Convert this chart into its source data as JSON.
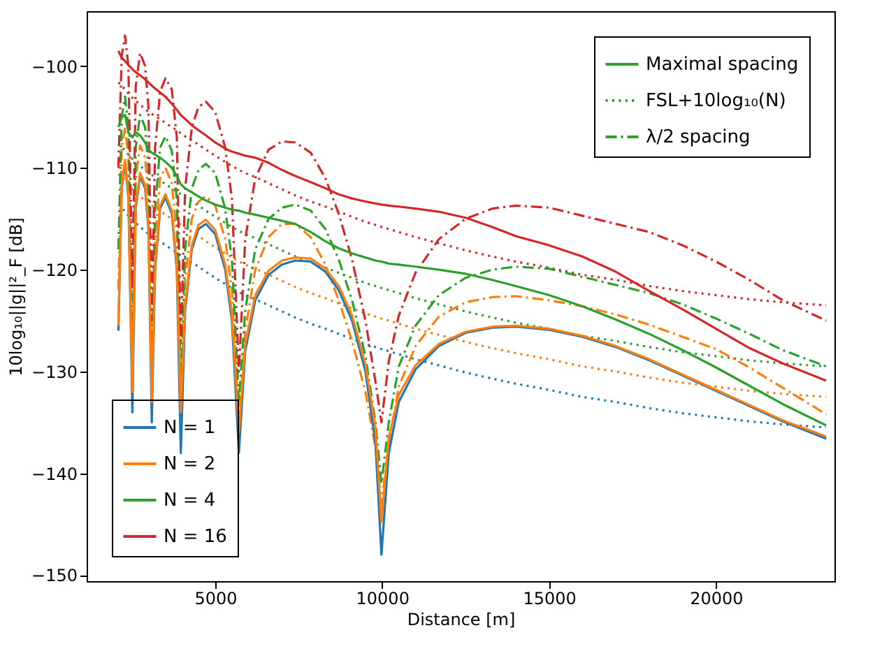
{
  "chart_data": {
    "type": "line",
    "xlabel": "Distance [m]",
    "ylabel": "10log₁₀||g||²_F [dB]",
    "xlim": [
      1150,
      23550
    ],
    "ylim": [
      -150.6,
      -94.6
    ],
    "xticks": [
      5000,
      10000,
      15000,
      20000
    ],
    "yticks": [
      -150,
      -140,
      -130,
      -120,
      -110,
      -100
    ],
    "grid": false,
    "legend": "bottom left",
    "marker": "none",
    "annotations": [
      "Maximal spacing"
    ],
    "x": [
      2100,
      2200,
      2300,
      2400,
      2520,
      2620,
      2750,
      2900,
      3000,
      3100,
      3200,
      3350,
      3510,
      3700,
      3850,
      3970,
      4100,
      4300,
      4500,
      4720,
      5000,
      5300,
      5500,
      5710,
      5900,
      6200,
      6600,
      7000,
      7400,
      7860,
      8300,
      8700,
      9100,
      9500,
      9800,
      9980,
      10200,
      10500,
      11000,
      11700,
      12500,
      13300,
      14000,
      15000,
      16000,
      17000,
      18000,
      19000,
      20000,
      21000,
      22000,
      23300
    ],
    "series": [
      {
        "color": "#1f77b4",
        "line_style": "dotted",
        "values": [
          -113.6,
          -113.9,
          -114.3,
          -114.7,
          -115.1,
          -115.4,
          -115.8,
          -116.2,
          -116.5,
          -116.7,
          -116.9,
          -117.2,
          -117.6,
          -118,
          -118.3,
          -118.6,
          -118.9,
          -119.3,
          -119.7,
          -120.2,
          -120.8,
          -121.4,
          -121.8,
          -122.2,
          -122.5,
          -122.9,
          -123.5,
          -124.1,
          -124.7,
          -125.3,
          -125.8,
          -126.3,
          -126.8,
          -127.3,
          -127.6,
          -127.8,
          -128,
          -128.3,
          -128.8,
          -129.4,
          -130.1,
          -130.7,
          -131.2,
          -131.8,
          -132.5,
          -133,
          -133.6,
          -134.1,
          -134.5,
          -134.9,
          -135.2,
          -135.5
        ]
      },
      {
        "color": "#ff7f0e",
        "line_style": "dotted",
        "values": [
          -110.6,
          -110.9,
          -111.3,
          -111.7,
          -112.1,
          -112.4,
          -112.8,
          -113.2,
          -113.5,
          -113.7,
          -113.9,
          -114.2,
          -114.6,
          -115,
          -115.3,
          -115.6,
          -115.9,
          -116.3,
          -116.7,
          -117.2,
          -117.8,
          -118.4,
          -118.8,
          -119.2,
          -119.5,
          -119.9,
          -120.5,
          -121.1,
          -121.7,
          -122.3,
          -122.8,
          -123.3,
          -123.8,
          -124.3,
          -124.6,
          -124.8,
          -125,
          -125.3,
          -125.8,
          -126.4,
          -127.1,
          -127.7,
          -128.2,
          -128.8,
          -129.5,
          -130,
          -130.6,
          -131.1,
          -131.5,
          -131.9,
          -132.2,
          -132.5
        ]
      },
      {
        "name": "FSL+10log₁₀(N)",
        "color": "#2ca02c",
        "line_style": "dotted",
        "values": [
          -107.6,
          -107.9,
          -108.3,
          -108.7,
          -109.1,
          -109.4,
          -109.8,
          -110.2,
          -110.5,
          -110.7,
          -110.9,
          -111.2,
          -111.6,
          -112,
          -112.3,
          -112.6,
          -112.9,
          -113.3,
          -113.7,
          -114.2,
          -114.8,
          -115.4,
          -115.8,
          -116.2,
          -116.5,
          -116.9,
          -117.5,
          -118.1,
          -118.7,
          -119.3,
          -119.8,
          -120.3,
          -120.8,
          -121.3,
          -121.6,
          -121.8,
          -122,
          -122.3,
          -122.8,
          -123.4,
          -124.1,
          -124.7,
          -125.2,
          -125.8,
          -126.5,
          -127,
          -127.6,
          -128.1,
          -128.5,
          -128.9,
          -129.2,
          -129.5
        ]
      },
      {
        "color": "#d62728",
        "line_style": "dotted",
        "values": [
          -101.6,
          -101.9,
          -102.3,
          -102.7,
          -103.1,
          -103.4,
          -103.8,
          -104.2,
          -104.5,
          -104.7,
          -104.9,
          -105.2,
          -105.6,
          -106,
          -106.3,
          -106.6,
          -106.9,
          -107.3,
          -107.7,
          -108.2,
          -108.8,
          -109.4,
          -109.8,
          -110.2,
          -110.5,
          -110.9,
          -111.5,
          -112.1,
          -112.7,
          -113.3,
          -113.8,
          -114.3,
          -114.8,
          -115.3,
          -115.6,
          -115.8,
          -116,
          -116.3,
          -116.8,
          -117.4,
          -118.1,
          -118.7,
          -119.2,
          -119.8,
          -120.5,
          -121,
          -121.6,
          -122.1,
          -122.5,
          -122.9,
          -123.2,
          -123.5
        ]
      },
      {
        "color": "#ff7f0e",
        "line_style": "dashdot",
        "values": [
          -122,
          -108,
          -106,
          -109,
          -131,
          -111,
          -107.8,
          -109,
          -113,
          -133,
          -117,
          -111,
          -110,
          -111.5,
          -116.5,
          -134,
          -121,
          -115,
          -113.3,
          -112.8,
          -113.7,
          -117,
          -122,
          -135,
          -126,
          -120,
          -116.8,
          -115.5,
          -115.5,
          -116.8,
          -119.5,
          -123,
          -127,
          -132,
          -137.5,
          -143,
          -137,
          -131.5,
          -127.5,
          -124.6,
          -123.2,
          -122.7,
          -122.6,
          -123,
          -123.6,
          -124.4,
          -125.4,
          -126.6,
          -127.8,
          -129.6,
          -131.6,
          -134.2
        ]
      },
      {
        "name": "λ/2 spacing",
        "color": "#2ca02c",
        "line_style": "dashdot",
        "values": [
          -118,
          -105,
          -103,
          -106,
          -128,
          -108,
          -104.8,
          -106,
          -110,
          -130,
          -114,
          -108,
          -106.9,
          -108.3,
          -113,
          -131,
          -118,
          -112,
          -110.2,
          -109.6,
          -110.5,
          -114,
          -119,
          -133,
          -124,
          -118,
          -115,
          -113.9,
          -113.6,
          -114.2,
          -116,
          -119,
          -123,
          -128.5,
          -135,
          -141,
          -135,
          -129.5,
          -125.5,
          -122.5,
          -120.8,
          -120,
          -119.7,
          -119.9,
          -120.7,
          -121.5,
          -122.3,
          -123.4,
          -124.8,
          -126.3,
          -127.9,
          -129.5
        ]
      },
      {
        "color": "#d62728",
        "line_style": "dashdot",
        "values": [
          -110,
          -99,
          -97,
          -100,
          -122,
          -102,
          -98.7,
          -100,
          -104,
          -125,
          -108,
          -102.5,
          -101.2,
          -102.3,
          -107,
          -127,
          -112,
          -106,
          -104,
          -103.5,
          -104.5,
          -108,
          -113,
          -130,
          -117,
          -111,
          -108.2,
          -107.4,
          -107.5,
          -108.5,
          -111,
          -114.5,
          -119,
          -125,
          -131,
          -135,
          -129,
          -124.5,
          -120.3,
          -117,
          -115,
          -114,
          -113.7,
          -113.9,
          -114.7,
          -115.5,
          -116.3,
          -117.6,
          -119.2,
          -121,
          -123,
          -125
        ]
      },
      {
        "name": "N = 1",
        "color": "#1f77b4",
        "line_style": "solid",
        "values": [
          -126,
          -112,
          -109.5,
          -113,
          -134,
          -114,
          -110.8,
          -112,
          -116,
          -135,
          -120,
          -114,
          -112.9,
          -114.5,
          -120,
          -138,
          -124,
          -118,
          -116,
          -115.5,
          -116.5,
          -120,
          -125,
          -138,
          -128,
          -123,
          -120.5,
          -119.5,
          -119.1,
          -119.2,
          -120.2,
          -122,
          -125,
          -130,
          -137,
          -148,
          -138,
          -133,
          -129.8,
          -127.5,
          -126.2,
          -125.7,
          -125.6,
          -125.9,
          -126.6,
          -127.6,
          -128.9,
          -130.4,
          -131.9,
          -133.4,
          -134.9,
          -136.6
        ]
      },
      {
        "name": "N = 2",
        "color": "#ff7f0e",
        "line_style": "solid",
        "values": [
          -125.5,
          -111.7,
          -109.2,
          -112.7,
          -132,
          -113.7,
          -110.5,
          -111.7,
          -115.6,
          -133,
          -119.6,
          -113.7,
          -112.6,
          -114.2,
          -119.5,
          -134,
          -123.5,
          -117.6,
          -115.6,
          -115.1,
          -116.1,
          -119.5,
          -124.3,
          -136,
          -127.3,
          -122.5,
          -120.1,
          -119.1,
          -118.8,
          -118.9,
          -119.9,
          -121.6,
          -124.5,
          -129.3,
          -135.5,
          -144.8,
          -136.5,
          -132.3,
          -129.4,
          -127.3,
          -126.1,
          -125.6,
          -125.5,
          -125.8,
          -126.5,
          -127.5,
          -128.8,
          -130.3,
          -131.8,
          -133.3,
          -134.8,
          -136.4
        ]
      },
      {
        "name": "N = 4",
        "color": "#2ca02c",
        "line_style": "solid",
        "values": [
          -106,
          -105,
          -104.8,
          -106.5,
          -107,
          -106.5,
          -106.8,
          -107.5,
          -108.2,
          -108.5,
          -108.7,
          -109,
          -109.4,
          -110,
          -110.8,
          -111.6,
          -112,
          -112.4,
          -112.8,
          -113.2,
          -113.6,
          -113.9,
          -114.1,
          -114.2,
          -114.4,
          -114.6,
          -114.9,
          -115.2,
          -115.5,
          -116.3,
          -117.2,
          -117.9,
          -118.4,
          -118.8,
          -119.1,
          -119.2,
          -119.4,
          -119.5,
          -119.7,
          -120,
          -120.4,
          -121,
          -121.6,
          -122.5,
          -123.6,
          -124.9,
          -126.3,
          -127.9,
          -129.6,
          -131.4,
          -133.2,
          -135.3
        ]
      },
      {
        "name": "N = 16",
        "color": "#d62728",
        "line_style": "solid",
        "values": [
          -98.5,
          -99.2,
          -99.5,
          -99.9,
          -100.3,
          -100.6,
          -100.9,
          -101.3,
          -101.6,
          -101.9,
          -102.2,
          -102.6,
          -103,
          -103.7,
          -104.3,
          -104.8,
          -105.2,
          -105.8,
          -106.3,
          -106.8,
          -107.5,
          -108.1,
          -108.4,
          -108.6,
          -108.8,
          -109,
          -109.5,
          -110.2,
          -110.8,
          -111.4,
          -112,
          -112.6,
          -113,
          -113.3,
          -113.5,
          -113.6,
          -113.7,
          -113.8,
          -114,
          -114.3,
          -114.9,
          -115.8,
          -116.7,
          -117.6,
          -118.7,
          -120.2,
          -122.1,
          -123.9,
          -125.8,
          -127.7,
          -129.2,
          -130.9
        ]
      }
    ]
  }
}
